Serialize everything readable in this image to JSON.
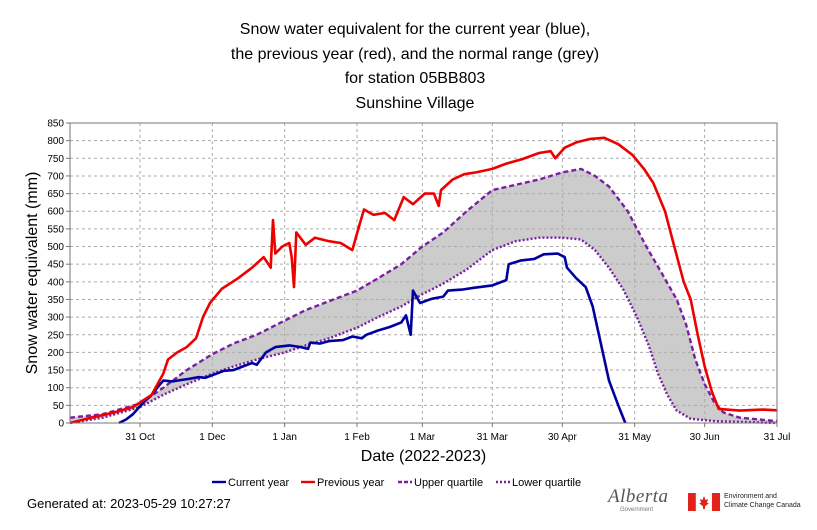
{
  "title_lines": [
    "Snow water equivalent for the current year (blue),",
    "the previous year (red), and the normal range (grey)",
    "for station 05BB803",
    "Sunshine Village"
  ],
  "footer": {
    "generated": "Generated at: 2023-05-29 10:27:27",
    "alberta_logo": "Alberta",
    "alberta_sub": "Government",
    "canada_line1": "Environment and",
    "canada_line2": "Climate Change Canada"
  },
  "colors": {
    "current": "#0000a0",
    "previous": "#ee0000",
    "quartile": "#7a1fa2",
    "normal_fill": "#cccccc",
    "grid": "#aaaaaa"
  },
  "chart_data": {
    "type": "line",
    "xlabel": "Date (2022-2023)",
    "ylabel": "Snow water equivalent (mm)",
    "xlim": [
      "2022-10-01",
      "2023-07-31"
    ],
    "ylim": [
      0,
      850
    ],
    "yticks": [
      0,
      50,
      100,
      150,
      200,
      250,
      300,
      350,
      400,
      450,
      500,
      550,
      600,
      650,
      700,
      750,
      800,
      850
    ],
    "xticks": [
      {
        "date": "2022-10-31",
        "label": "31 Oct"
      },
      {
        "date": "2022-12-01",
        "label": "1 Dec"
      },
      {
        "date": "2023-01-01",
        "label": "1 Jan"
      },
      {
        "date": "2023-02-01",
        "label": "1 Feb"
      },
      {
        "date": "2023-03-01",
        "label": "1 Mar"
      },
      {
        "date": "2023-03-31",
        "label": "31 Mar"
      },
      {
        "date": "2023-04-30",
        "label": "30 Apr"
      },
      {
        "date": "2023-05-31",
        "label": "31 May"
      },
      {
        "date": "2023-06-30",
        "label": "30 Jun"
      },
      {
        "date": "2023-07-31",
        "label": "31 Jul"
      }
    ],
    "grid": true,
    "legend_position": "bottom",
    "series": [
      {
        "name": "Current year",
        "style": "solid",
        "color_key": "current",
        "points": [
          [
            "2022-10-22",
            0
          ],
          [
            "2022-10-25",
            10
          ],
          [
            "2022-10-28",
            25
          ],
          [
            "2022-11-01",
            55
          ],
          [
            "2022-11-05",
            80
          ],
          [
            "2022-11-08",
            105
          ],
          [
            "2022-11-10",
            120
          ],
          [
            "2022-11-14",
            118
          ],
          [
            "2022-11-18",
            122
          ],
          [
            "2022-11-21",
            125
          ],
          [
            "2022-11-25",
            130
          ],
          [
            "2022-11-28",
            128
          ],
          [
            "2022-12-02",
            138
          ],
          [
            "2022-12-06",
            148
          ],
          [
            "2022-12-10",
            150
          ],
          [
            "2022-12-14",
            160
          ],
          [
            "2022-12-18",
            170
          ],
          [
            "2022-12-20",
            165
          ],
          [
            "2022-12-24",
            200
          ],
          [
            "2022-12-28",
            215
          ],
          [
            "2023-01-03",
            220
          ],
          [
            "2023-01-08",
            215
          ],
          [
            "2023-01-11",
            210
          ],
          [
            "2023-01-12",
            228
          ],
          [
            "2023-01-16",
            225
          ],
          [
            "2023-01-20",
            232
          ],
          [
            "2023-01-26",
            235
          ],
          [
            "2023-01-30",
            245
          ],
          [
            "2023-02-03",
            240
          ],
          [
            "2023-02-05",
            250
          ],
          [
            "2023-02-10",
            262
          ],
          [
            "2023-02-15",
            272
          ],
          [
            "2023-02-20",
            285
          ],
          [
            "2023-02-22",
            305
          ],
          [
            "2023-02-24",
            250
          ],
          [
            "2023-02-25",
            375
          ],
          [
            "2023-02-28",
            340
          ],
          [
            "2023-03-05",
            352
          ],
          [
            "2023-03-10",
            358
          ],
          [
            "2023-03-12",
            375
          ],
          [
            "2023-03-18",
            378
          ],
          [
            "2023-03-23",
            383
          ],
          [
            "2023-03-31",
            390
          ],
          [
            "2023-04-06",
            405
          ],
          [
            "2023-04-07",
            450
          ],
          [
            "2023-04-12",
            460
          ],
          [
            "2023-04-18",
            465
          ],
          [
            "2023-04-22",
            478
          ],
          [
            "2023-04-28",
            480
          ],
          [
            "2023-05-01",
            470
          ],
          [
            "2023-05-02",
            440
          ],
          [
            "2023-05-06",
            410
          ],
          [
            "2023-05-10",
            385
          ],
          [
            "2023-05-13",
            330
          ],
          [
            "2023-05-16",
            240
          ],
          [
            "2023-05-20",
            120
          ],
          [
            "2023-05-24",
            50
          ],
          [
            "2023-05-27",
            0
          ]
        ]
      },
      {
        "name": "Previous year",
        "style": "solid",
        "color_key": "previous",
        "points": [
          [
            "2022-10-01",
            0
          ],
          [
            "2022-10-10",
            15
          ],
          [
            "2022-10-20",
            30
          ],
          [
            "2022-10-28",
            45
          ],
          [
            "2022-11-05",
            80
          ],
          [
            "2022-11-10",
            140
          ],
          [
            "2022-11-12",
            180
          ],
          [
            "2022-11-16",
            200
          ],
          [
            "2022-11-20",
            215
          ],
          [
            "2022-11-24",
            240
          ],
          [
            "2022-11-27",
            300
          ],
          [
            "2022-11-30",
            340
          ],
          [
            "2022-12-05",
            380
          ],
          [
            "2022-12-12",
            410
          ],
          [
            "2022-12-18",
            440
          ],
          [
            "2022-12-23",
            470
          ],
          [
            "2022-12-26",
            440
          ],
          [
            "2022-12-27",
            575
          ],
          [
            "2022-12-28",
            480
          ],
          [
            "2022-12-31",
            500
          ],
          [
            "2023-01-03",
            510
          ],
          [
            "2023-01-04",
            470
          ],
          [
            "2023-01-05",
            385
          ],
          [
            "2023-01-06",
            540
          ],
          [
            "2023-01-10",
            505
          ],
          [
            "2023-01-14",
            525
          ],
          [
            "2023-01-20",
            515
          ],
          [
            "2023-01-25",
            510
          ],
          [
            "2023-01-30",
            490
          ],
          [
            "2023-02-02",
            560
          ],
          [
            "2023-02-04",
            605
          ],
          [
            "2023-02-08",
            590
          ],
          [
            "2023-02-13",
            595
          ],
          [
            "2023-02-17",
            575
          ],
          [
            "2023-02-21",
            640
          ],
          [
            "2023-02-25",
            620
          ],
          [
            "2023-03-02",
            650
          ],
          [
            "2023-03-06",
            650
          ],
          [
            "2023-03-08",
            615
          ],
          [
            "2023-03-09",
            660
          ],
          [
            "2023-03-14",
            690
          ],
          [
            "2023-03-19",
            705
          ],
          [
            "2023-03-24",
            710
          ],
          [
            "2023-03-31",
            720
          ],
          [
            "2023-04-06",
            735
          ],
          [
            "2023-04-13",
            748
          ],
          [
            "2023-04-20",
            765
          ],
          [
            "2023-04-25",
            770
          ],
          [
            "2023-04-27",
            750
          ],
          [
            "2023-05-01",
            780
          ],
          [
            "2023-05-06",
            795
          ],
          [
            "2023-05-12",
            805
          ],
          [
            "2023-05-18",
            808
          ],
          [
            "2023-05-24",
            790
          ],
          [
            "2023-05-30",
            760
          ],
          [
            "2023-06-04",
            720
          ],
          [
            "2023-06-08",
            680
          ],
          [
            "2023-06-13",
            600
          ],
          [
            "2023-06-17",
            500
          ],
          [
            "2023-06-21",
            400
          ],
          [
            "2023-06-24",
            350
          ],
          [
            "2023-06-27",
            250
          ],
          [
            "2023-06-30",
            160
          ],
          [
            "2023-07-03",
            90
          ],
          [
            "2023-07-06",
            40
          ],
          [
            "2023-07-15",
            35
          ],
          [
            "2023-07-25",
            38
          ],
          [
            "2023-07-31",
            36
          ]
        ]
      },
      {
        "name": "Upper quartile",
        "style": "dashed",
        "color_key": "quartile",
        "points": [
          [
            "2022-10-01",
            15
          ],
          [
            "2022-10-15",
            25
          ],
          [
            "2022-10-31",
            55
          ],
          [
            "2022-11-10",
            100
          ],
          [
            "2022-11-20",
            150
          ],
          [
            "2022-12-01",
            195
          ],
          [
            "2022-12-10",
            225
          ],
          [
            "2022-12-20",
            250
          ],
          [
            "2023-01-01",
            290
          ],
          [
            "2023-01-10",
            320
          ],
          [
            "2023-01-20",
            345
          ],
          [
            "2023-02-01",
            375
          ],
          [
            "2023-02-10",
            410
          ],
          [
            "2023-02-20",
            450
          ],
          [
            "2023-03-01",
            500
          ],
          [
            "2023-03-10",
            540
          ],
          [
            "2023-03-20",
            600
          ],
          [
            "2023-03-31",
            660
          ],
          [
            "2023-04-10",
            675
          ],
          [
            "2023-04-20",
            690
          ],
          [
            "2023-04-30",
            710
          ],
          [
            "2023-05-08",
            720
          ],
          [
            "2023-05-14",
            700
          ],
          [
            "2023-05-20",
            670
          ],
          [
            "2023-05-28",
            600
          ],
          [
            "2023-06-05",
            500
          ],
          [
            "2023-06-12",
            420
          ],
          [
            "2023-06-18",
            350
          ],
          [
            "2023-06-22",
            280
          ],
          [
            "2023-06-26",
            180
          ],
          [
            "2023-06-30",
            110
          ],
          [
            "2023-07-04",
            60
          ],
          [
            "2023-07-08",
            30
          ],
          [
            "2023-07-15",
            15
          ],
          [
            "2023-07-31",
            5
          ]
        ]
      },
      {
        "name": "Lower quartile",
        "style": "dotted",
        "color_key": "quartile",
        "points": [
          [
            "2022-10-01",
            0
          ],
          [
            "2022-10-15",
            15
          ],
          [
            "2022-10-31",
            45
          ],
          [
            "2022-11-10",
            80
          ],
          [
            "2022-11-20",
            110
          ],
          [
            "2022-12-01",
            140
          ],
          [
            "2022-12-10",
            160
          ],
          [
            "2022-12-20",
            180
          ],
          [
            "2023-01-01",
            200
          ],
          [
            "2023-01-10",
            220
          ],
          [
            "2023-01-20",
            240
          ],
          [
            "2023-02-01",
            270
          ],
          [
            "2023-02-10",
            300
          ],
          [
            "2023-02-20",
            330
          ],
          [
            "2023-03-01",
            365
          ],
          [
            "2023-03-10",
            395
          ],
          [
            "2023-03-20",
            435
          ],
          [
            "2023-03-31",
            490
          ],
          [
            "2023-04-10",
            515
          ],
          [
            "2023-04-20",
            525
          ],
          [
            "2023-04-30",
            525
          ],
          [
            "2023-05-08",
            520
          ],
          [
            "2023-05-14",
            490
          ],
          [
            "2023-05-20",
            440
          ],
          [
            "2023-05-26",
            380
          ],
          [
            "2023-06-01",
            300
          ],
          [
            "2023-06-06",
            220
          ],
          [
            "2023-06-10",
            140
          ],
          [
            "2023-06-14",
            80
          ],
          [
            "2023-06-18",
            35
          ],
          [
            "2023-06-24",
            12
          ],
          [
            "2023-07-05",
            5
          ],
          [
            "2023-07-31",
            0
          ]
        ]
      }
    ]
  }
}
